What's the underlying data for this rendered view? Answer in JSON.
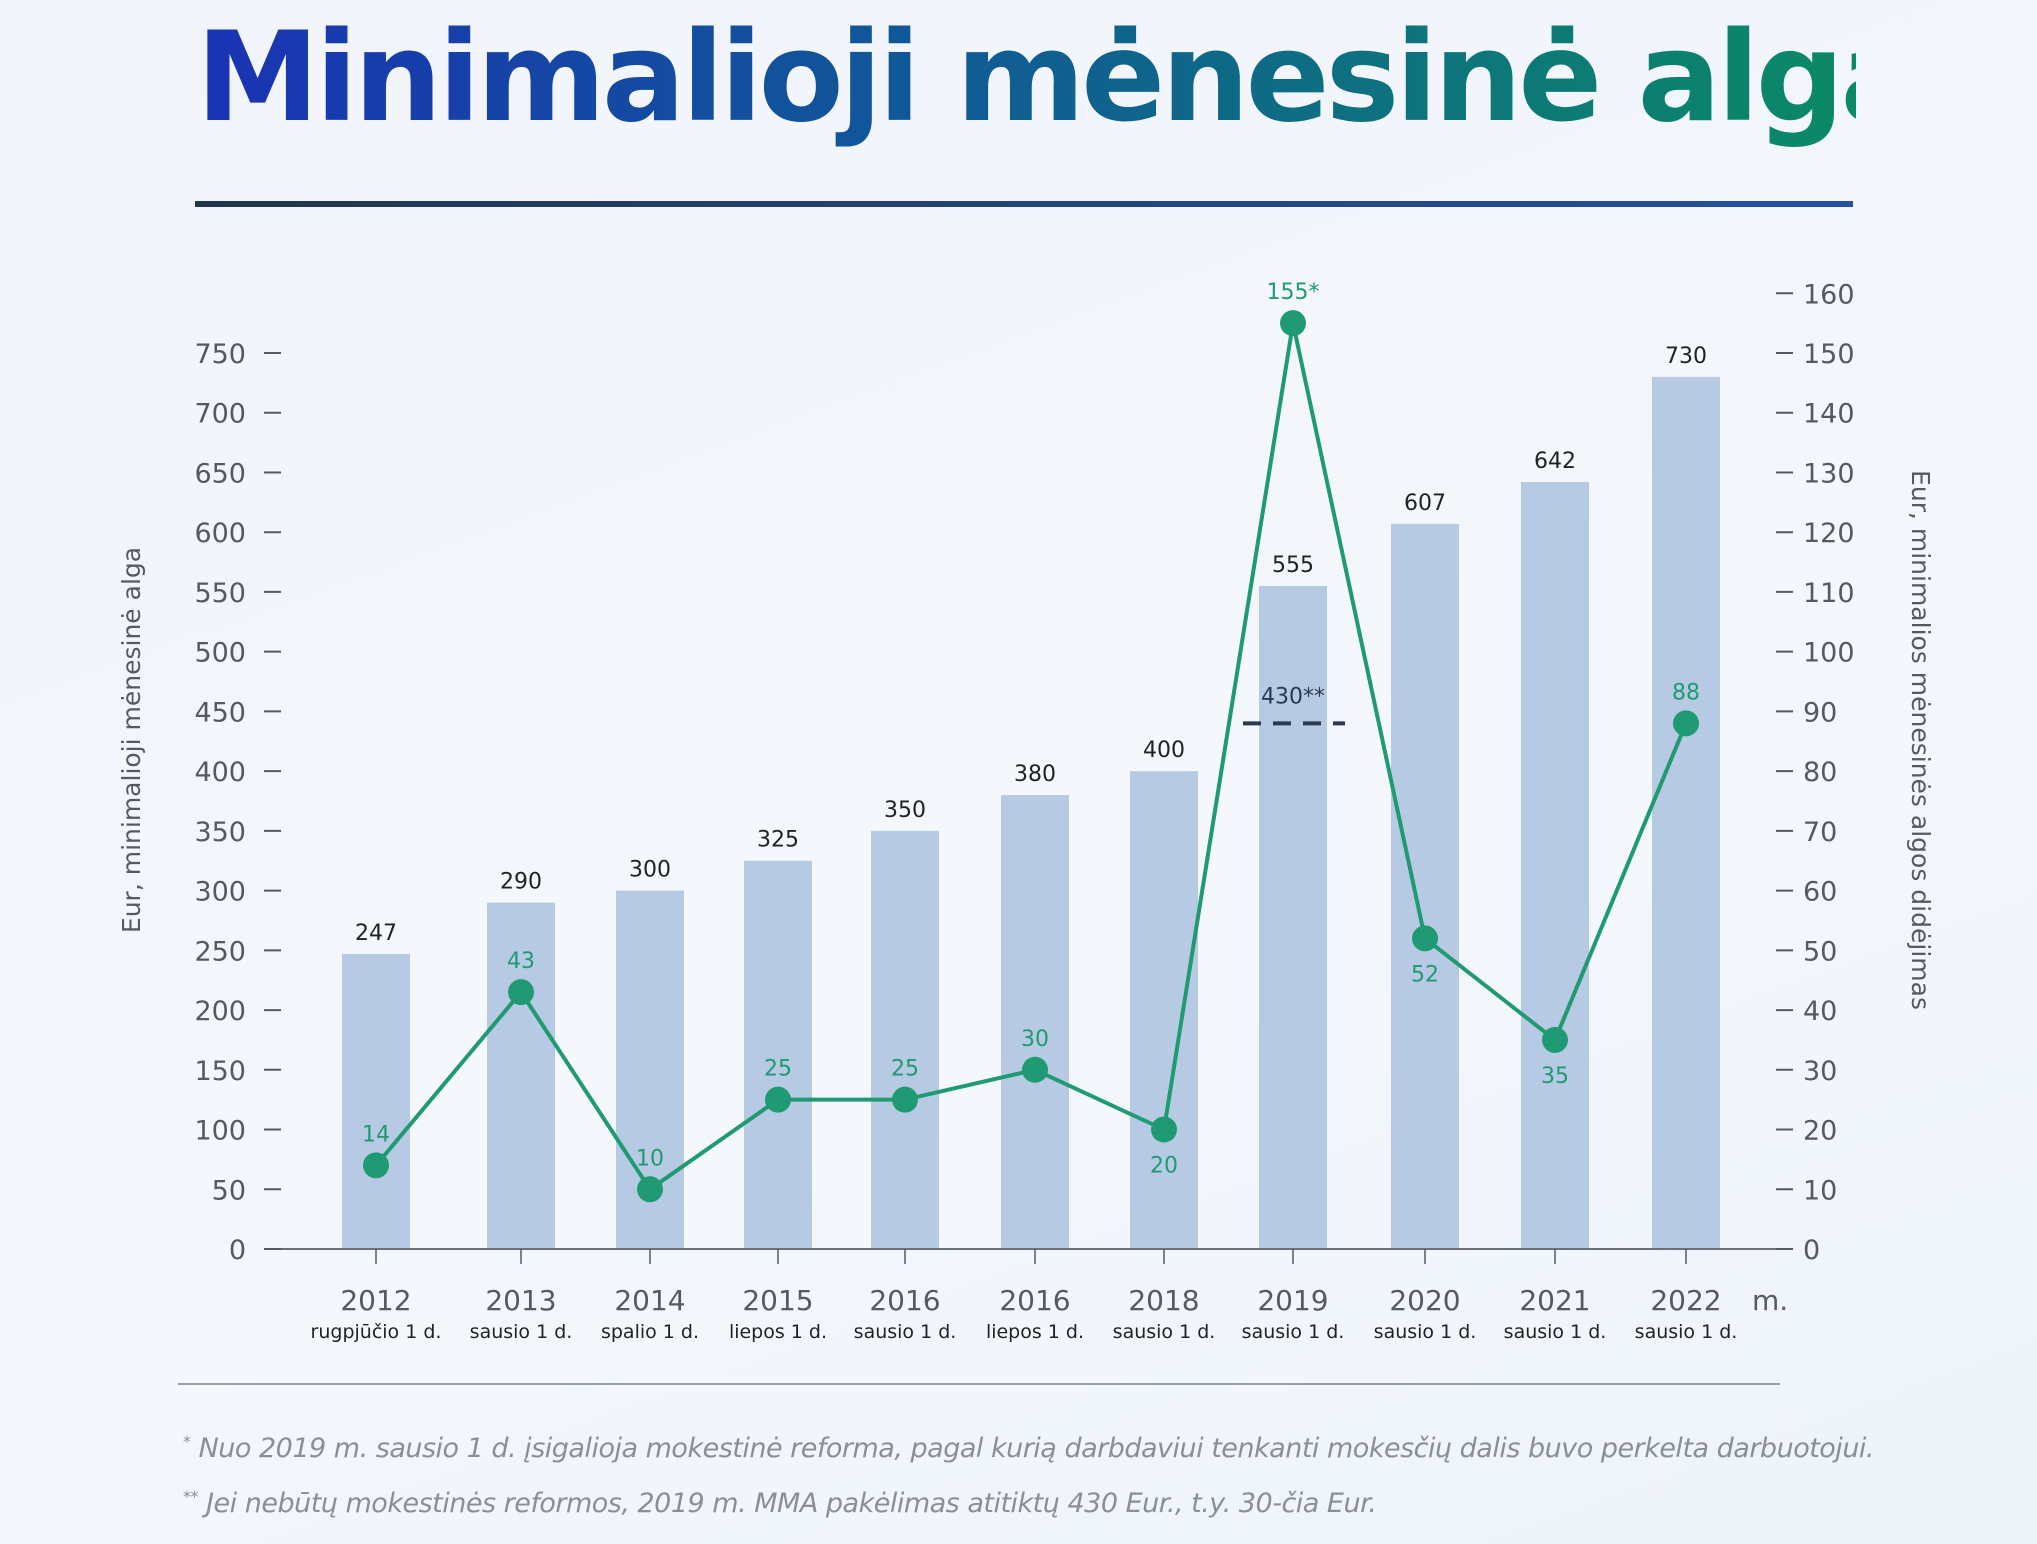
{
  "title": "Minimalioji mėnesinė alga",
  "chart_data": {
    "type": "bar+line",
    "title": "Minimalioji mėnesinė alga",
    "categories": [
      "2012",
      "2013",
      "2014",
      "2015",
      "2016",
      "2016",
      "2018",
      "2019",
      "2020",
      "2021",
      "2022"
    ],
    "category_sublabels": [
      "rugpjūčio 1 d.",
      "sausio 1 d.",
      "spalio 1 d.",
      "liepos 1 d.",
      "sausio 1 d.",
      "liepos 1 d.",
      "sausio 1 d.",
      "sausio 1 d.",
      "sausio 1 d.",
      "sausio 1 d.",
      "sausio 1 d."
    ],
    "x_unit_label": "m.",
    "bar_series": {
      "values": [
        247,
        290,
        300,
        325,
        350,
        380,
        400,
        555,
        607,
        642,
        730
      ],
      "axis": "left",
      "color": "#b7cae3"
    },
    "line_series": {
      "values": [
        14,
        43,
        10,
        25,
        25,
        30,
        20,
        155,
        52,
        35,
        88
      ],
      "labels": [
        "14",
        "43",
        "10",
        "25",
        "25",
        "30",
        "20",
        "155*",
        "52",
        "35",
        "88"
      ],
      "axis": "right",
      "color": "#1f9a72"
    },
    "reference": {
      "category": "2019",
      "value": 430,
      "label": "430**",
      "style": "dashed"
    },
    "ylabel_left": "Eur, minimalioji mėnesinė alga",
    "ylabel_right": "Eur, minimalios mėnesinės algos didėjimas",
    "ylim_left": [
      0,
      750
    ],
    "yticks_left": [
      0,
      50,
      100,
      150,
      200,
      250,
      300,
      350,
      400,
      450,
      500,
      550,
      600,
      650,
      700,
      750
    ],
    "ylim_right": [
      0,
      160
    ],
    "yticks_right": [
      0,
      10,
      20,
      30,
      40,
      50,
      60,
      70,
      80,
      90,
      100,
      110,
      120,
      130,
      140,
      150,
      160
    ],
    "grid": false,
    "legend": "none"
  },
  "footnotes": [
    {
      "mark": "*",
      "text": "Nuo 2019 m. sausio 1 d. įsigalioja mokestinė reforma, pagal kurią darbdaviui tenkanti mokesčių dalis buvo perkelta darbuotojui."
    },
    {
      "mark": "**",
      "text": "Jei nebūtų mokestinės reformos, 2019 m. MMA pakėlimas atitiktų 430 Eur., t.y. 30-čia Eur."
    }
  ]
}
